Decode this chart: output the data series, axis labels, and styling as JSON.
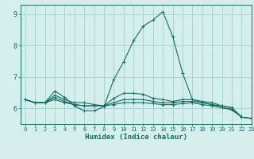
{
  "xlabel": "Humidex (Indice chaleur)",
  "xlim": [
    -0.5,
    23
  ],
  "ylim": [
    5.5,
    9.3
  ],
  "xticks": [
    0,
    1,
    2,
    3,
    4,
    5,
    6,
    7,
    8,
    9,
    10,
    11,
    12,
    13,
    14,
    15,
    16,
    17,
    18,
    19,
    20,
    21,
    22,
    23
  ],
  "yticks": [
    6,
    7,
    8,
    9
  ],
  "bg_color": "#d4eeec",
  "grid_color": "#a8d8d4",
  "line_color": "#1a6b62",
  "lines": [
    {
      "x": [
        0,
        1,
        2,
        3,
        4,
        5,
        6,
        7,
        8,
        9,
        10,
        11,
        12,
        13,
        14,
        15,
        16,
        17,
        18,
        19,
        20,
        21,
        22,
        23
      ],
      "y": [
        6.28,
        6.18,
        6.18,
        6.55,
        6.35,
        6.08,
        5.92,
        5.92,
        6.05,
        6.92,
        7.48,
        8.15,
        8.62,
        8.82,
        9.08,
        8.28,
        7.12,
        6.28,
        6.18,
        6.12,
        6.08,
        6.02,
        5.72,
        5.68
      ]
    },
    {
      "x": [
        0,
        1,
        2,
        3,
        4,
        5,
        6,
        7,
        8,
        9,
        10,
        11,
        12,
        13,
        14,
        15,
        16,
        17,
        18,
        19,
        20,
        21,
        22,
        23
      ],
      "y": [
        6.28,
        6.18,
        6.18,
        6.42,
        6.28,
        6.18,
        6.18,
        6.12,
        6.08,
        6.32,
        6.48,
        6.48,
        6.45,
        6.32,
        6.28,
        6.22,
        6.28,
        6.28,
        6.22,
        6.18,
        6.08,
        6.02,
        5.72,
        5.68
      ]
    },
    {
      "x": [
        0,
        1,
        2,
        3,
        4,
        5,
        6,
        7,
        8,
        9,
        10,
        11,
        12,
        13,
        14,
        15,
        16,
        17,
        18,
        19,
        20,
        21,
        22,
        23
      ],
      "y": [
        6.28,
        6.18,
        6.18,
        6.35,
        6.22,
        6.12,
        6.08,
        6.08,
        6.08,
        6.18,
        6.28,
        6.28,
        6.28,
        6.22,
        6.18,
        6.18,
        6.22,
        6.22,
        6.18,
        6.12,
        6.02,
        5.98,
        5.72,
        5.68
      ]
    },
    {
      "x": [
        0,
        1,
        2,
        3,
        4,
        5,
        6,
        7,
        8,
        9,
        10,
        11,
        12,
        13,
        14,
        15,
        16,
        17,
        18,
        19,
        20,
        21,
        22,
        23
      ],
      "y": [
        6.28,
        6.18,
        6.18,
        6.28,
        6.18,
        6.12,
        6.08,
        6.08,
        6.08,
        6.12,
        6.18,
        6.18,
        6.18,
        6.15,
        6.12,
        6.12,
        6.15,
        6.18,
        6.12,
        6.08,
        6.02,
        5.95,
        5.72,
        5.68
      ]
    }
  ]
}
